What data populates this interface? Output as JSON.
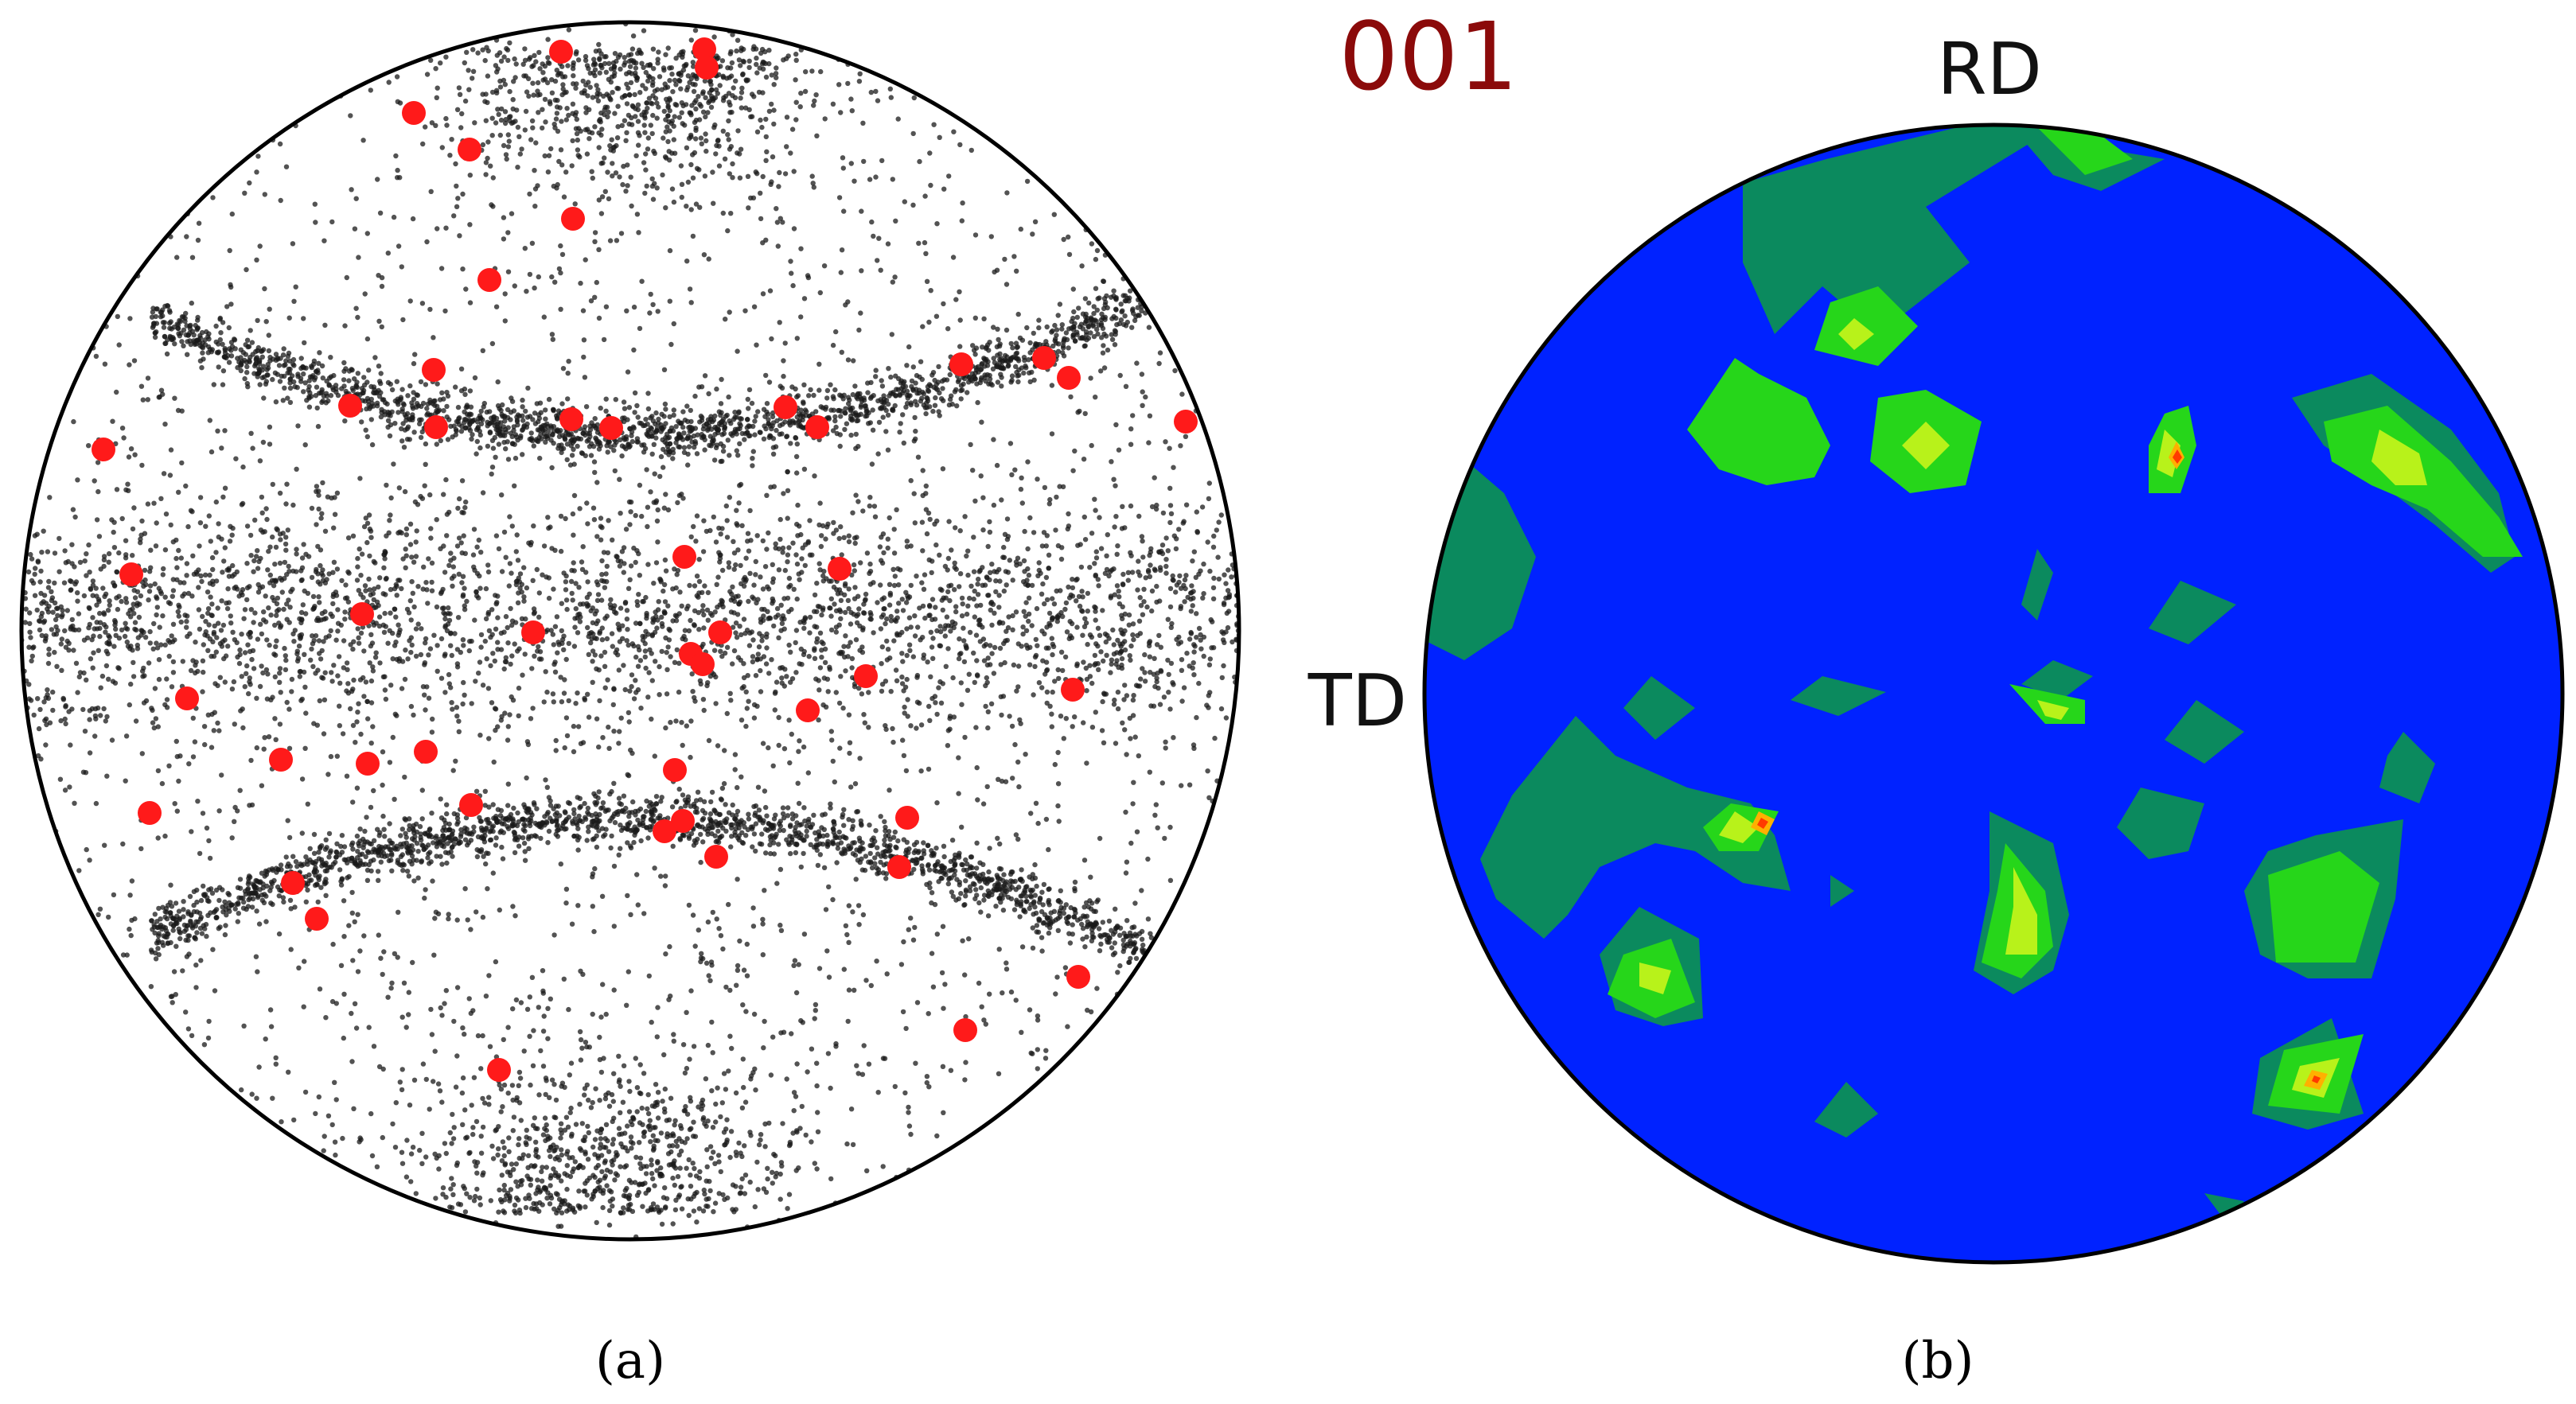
{
  "panel_a": {
    "caption": "(a)",
    "colors": {
      "scatter": "#1a1a1a",
      "highlight": "#ff1a1a",
      "outline": "#000000"
    }
  },
  "panel_b": {
    "title": "001",
    "caption": "(b)",
    "axis_top": "RD",
    "axis_left": "TD",
    "colors": {
      "background": "#0022ff",
      "level1": "#0b8a5e",
      "level2": "#26d61a",
      "level3": "#b8f21a",
      "level4": "#ffb000",
      "level5": "#ff3a00",
      "title": "#8b0a0a",
      "outline": "#000000"
    }
  }
}
